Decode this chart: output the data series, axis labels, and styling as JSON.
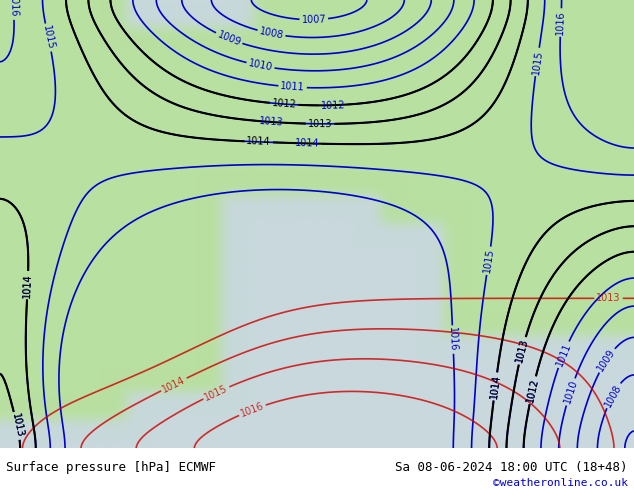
{
  "title_left": "Surface pressure [hPa] ECMWF",
  "title_right": "Sa 08-06-2024 18:00 UTC (18+48)",
  "credit": "©weatheronline.co.uk",
  "bg_color": "#c8d8c8",
  "land_color_light": "#b8e0a0",
  "land_color_dark": "#90c870",
  "sea_color": "#d0dce8",
  "contour_color_blue": "#0000cc",
  "contour_color_black": "#000000",
  "contour_color_red": "#cc0000",
  "label_color_blue": "#0000cc",
  "label_color_black": "#000000",
  "label_color_red": "#cc0000",
  "bottom_bar_color": "#e8e8e8",
  "bottom_bar_height": 0.085,
  "fig_width": 6.34,
  "fig_height": 4.9,
  "dpi": 100
}
